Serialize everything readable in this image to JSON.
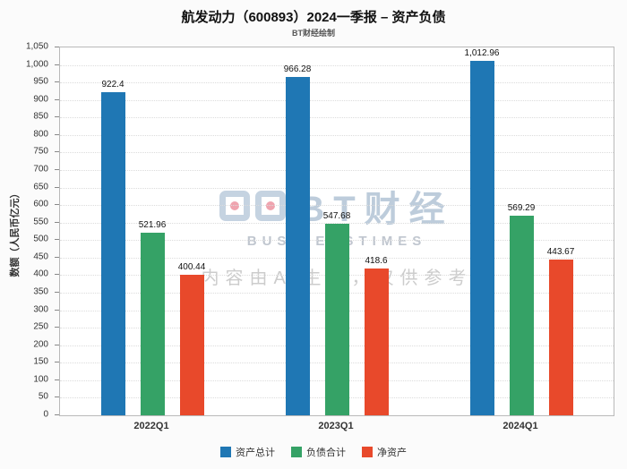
{
  "chart_data": {
    "type": "bar",
    "title": "航发动力（600893）2024一季报 – 资产负债",
    "subtitle": "BT财经绘制",
    "categories": [
      "2022Q1",
      "2023Q1",
      "2024Q1"
    ],
    "series": [
      {
        "name": "资产总计",
        "color": "#1f77b4",
        "values": [
          922.4,
          966.28,
          1012.96
        ]
      },
      {
        "name": "负债合计",
        "color": "#35a266",
        "values": [
          521.96,
          547.68,
          569.29
        ]
      },
      {
        "name": "净资产",
        "color": "#e8492b",
        "values": [
          400.44,
          418.6,
          443.67
        ]
      }
    ],
    "xlabel": "",
    "ylabel": "数额（人民币亿元）",
    "ylim": [
      0,
      1050
    ],
    "ytick_step": 50,
    "grid": true,
    "legend_position": "bottom",
    "data_labels": true
  },
  "watermark": {
    "brand": "BT财经",
    "brand_sub": "BUSINESSTIMES",
    "ai_note": "内容由AI生成，仅供参考"
  }
}
